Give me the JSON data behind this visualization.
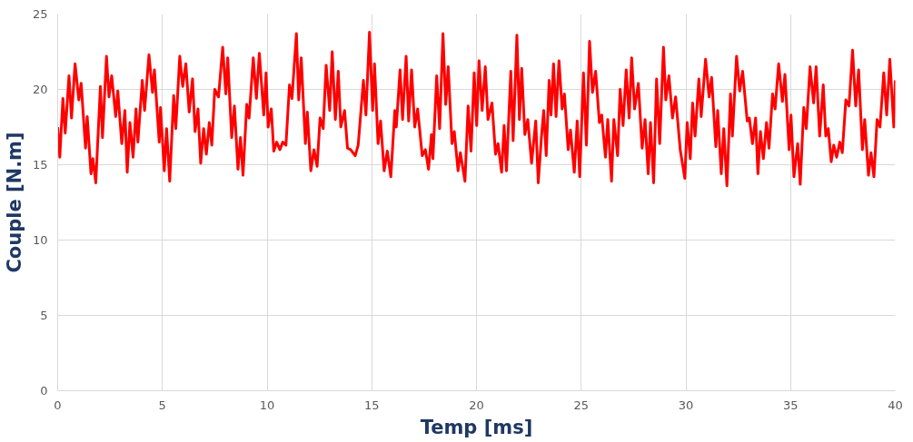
{
  "chart_data": {
    "type": "line",
    "xlabel": "Temp [ms]",
    "ylabel": "Couple [N.m]",
    "xlim": [
      0,
      40
    ],
    "ylim": [
      0,
      25
    ],
    "xticks": [
      0,
      5,
      10,
      15,
      20,
      25,
      30,
      35,
      40
    ],
    "yticks": [
      0,
      5,
      10,
      15,
      20,
      25
    ],
    "grid": true,
    "line_style": "solid",
    "series": [
      {
        "color": "#ff0000",
        "x": [
          0,
          0.1,
          0.25,
          0.36,
          0.54,
          0.66,
          0.83,
          1.01,
          1.12,
          1.33,
          1.41,
          1.59,
          1.68,
          1.82,
          2.04,
          2.14,
          2.33,
          2.45,
          2.58,
          2.77,
          2.87,
          3.06,
          3.21,
          3.32,
          3.45,
          3.6,
          3.74,
          3.83,
          4.04,
          4.15,
          4.36,
          4.53,
          4.62,
          4.85,
          4.91,
          5.09,
          5.2,
          5.35,
          5.54,
          5.64,
          5.83,
          5.97,
          6.12,
          6.28,
          6.44,
          6.56,
          6.7,
          6.83,
          6.97,
          7.1,
          7.24,
          7.36,
          7.5,
          7.68,
          7.88,
          8.03,
          8.12,
          8.31,
          8.44,
          8.61,
          8.73,
          8.85,
          9.03,
          9.14,
          9.34,
          9.49,
          9.63,
          9.84,
          9.95,
          10.05,
          10.2,
          10.32,
          10.46,
          10.61,
          10.75,
          10.9,
          11.07,
          11.19,
          11.4,
          11.51,
          11.63,
          11.83,
          11.92,
          12.09,
          12.24,
          12.39,
          12.53,
          12.68,
          12.82,
          12.99,
          13.11,
          13.26,
          13.4,
          13.52,
          13.7,
          13.84,
          13.99,
          14.21,
          14.35,
          14.6,
          14.72,
          14.89,
          15.04,
          15.13,
          15.3,
          15.42,
          15.59,
          15.74,
          15.91,
          16.1,
          16.17,
          16.35,
          16.47,
          16.64,
          16.76,
          16.9,
          17.05,
          17.19,
          17.41,
          17.56,
          17.71,
          17.85,
          17.92,
          18.1,
          18.24,
          18.4,
          18.53,
          18.65,
          18.83,
          18.94,
          19.12,
          19.23,
          19.45,
          19.6,
          19.74,
          19.89,
          20.01,
          20.12,
          20.27,
          20.42,
          20.55,
          20.74,
          20.91,
          21.03,
          21.2,
          21.32,
          21.43,
          21.64,
          21.75,
          21.93,
          22.05,
          22.16,
          22.31,
          22.45,
          22.63,
          22.83,
          22.95,
          23.1,
          23.21,
          23.33,
          23.47,
          23.56,
          23.68,
          23.8,
          23.94,
          24.09,
          24.2,
          24.38,
          24.49,
          24.67,
          24.81,
          24.93,
          25.11,
          25.25,
          25.4,
          25.54,
          25.69,
          25.87,
          25.98,
          26.16,
          26.27,
          26.45,
          26.56,
          26.74,
          26.86,
          27,
          27.15,
          27.29,
          27.41,
          27.55,
          27.73,
          27.91,
          28.05,
          28.2,
          28.31,
          28.46,
          28.6,
          28.75,
          28.93,
          29.04,
          29.19,
          29.36,
          29.51,
          29.73,
          29.95,
          30.06,
          30.21,
          30.32,
          30.44,
          30.62,
          30.73,
          30.94,
          31.11,
          31.23,
          31.43,
          31.52,
          31.69,
          31.81,
          31.96,
          32.13,
          32.22,
          32.42,
          32.57,
          32.71,
          32.93,
          33.03,
          33.18,
          33.33,
          33.44,
          33.56,
          33.7,
          33.85,
          33.97,
          34.14,
          34.26,
          34.43,
          34.61,
          34.73,
          34.93,
          35.02,
          35.16,
          35.34,
          35.46,
          35.63,
          35.75,
          35.93,
          36.1,
          36.22,
          36.39,
          36.56,
          36.68,
          36.8,
          36.94,
          37.06,
          37.2,
          37.35,
          37.47,
          37.64,
          37.79,
          37.96,
          38.11,
          38.25,
          38.43,
          38.54,
          38.72,
          38.84,
          38.98,
          39.13,
          39.27,
          39.45,
          39.59,
          39.74,
          39.93,
          40
        ],
        "values": [
          17.5,
          15.5,
          19.4,
          17.1,
          20.9,
          18.1,
          21.7,
          19.3,
          20.4,
          16.1,
          18.2,
          14.4,
          15.4,
          13.8,
          20.2,
          16.8,
          22.2,
          19.5,
          20.9,
          18.2,
          19.9,
          16.4,
          18.6,
          14.5,
          17.8,
          15.5,
          18.7,
          16.5,
          20.6,
          18.6,
          22.3,
          19.8,
          21.3,
          16.5,
          18.8,
          14.6,
          17.4,
          13.9,
          19.6,
          17.4,
          22.2,
          20.2,
          21.7,
          18.5,
          20.7,
          17.2,
          18.7,
          15.1,
          17.4,
          15.7,
          17.8,
          16.3,
          20,
          19.5,
          22.8,
          19.7,
          22.1,
          16.8,
          18.9,
          14.7,
          16.8,
          14.3,
          19,
          18.1,
          22.1,
          19.4,
          22.4,
          18.3,
          21.1,
          17.5,
          18.7,
          15.9,
          16.5,
          16,
          16.5,
          16.3,
          20.3,
          19.4,
          23.7,
          19.3,
          22.1,
          16.4,
          18.5,
          14.6,
          16,
          14.9,
          18.1,
          17.4,
          21.6,
          18.6,
          22.5,
          18,
          21.2,
          17.5,
          18.6,
          16.1,
          16,
          15.6,
          16.3,
          20.6,
          18.3,
          23.8,
          18.6,
          21.7,
          16.4,
          17.9,
          14.6,
          15.9,
          14.2,
          18.6,
          17.5,
          21.3,
          18,
          22.2,
          17.9,
          21.3,
          17.5,
          18.7,
          15.6,
          16,
          14.7,
          17,
          15.4,
          20.9,
          17.4,
          23.7,
          19,
          21.5,
          16.4,
          17.2,
          14.6,
          15.8,
          13.9,
          18.9,
          15.9,
          21.1,
          17.6,
          21.9,
          18.6,
          21.5,
          18,
          19.1,
          15.7,
          16.4,
          14.5,
          17.6,
          14.6,
          21.2,
          16.6,
          23.6,
          18,
          21.4,
          17,
          18,
          15.1,
          17.9,
          13.8,
          16.8,
          18.6,
          15.6,
          20.6,
          18.3,
          21.7,
          18.2,
          21.9,
          18.7,
          19.7,
          16,
          17.3,
          14.5,
          17.9,
          14.2,
          21.1,
          16.3,
          23.2,
          19.8,
          21.2,
          17.8,
          18.3,
          15.5,
          18,
          13.9,
          18,
          15.6,
          20,
          17.6,
          21.3,
          18.1,
          22.1,
          18.7,
          20.4,
          16.1,
          18,
          14.4,
          17.8,
          13.8,
          20.7,
          16.4,
          22.8,
          19.3,
          20.9,
          18.1,
          19.5,
          16,
          14.1,
          17.8,
          15.4,
          19.1,
          16.9,
          20.7,
          18.2,
          22,
          19.5,
          20.8,
          16.2,
          18.6,
          14.4,
          17.4,
          13.6,
          19.7,
          16.9,
          22.2,
          19.9,
          21.2,
          17.9,
          18.1,
          16.4,
          18.1,
          14.4,
          17.2,
          15.4,
          17.8,
          16.1,
          19.7,
          18.7,
          21.7,
          19.2,
          21,
          16,
          18.3,
          14.2,
          16.4,
          13.7,
          18.8,
          17.4,
          21.5,
          19.1,
          21.5,
          16.9,
          20.3,
          16.9,
          17.4,
          15.2,
          16.3,
          15.5,
          16.5,
          15.8,
          19.3,
          18.9,
          22.6,
          18.9,
          21.3,
          16,
          18,
          14.3,
          15.8,
          14.2,
          18,
          17.5,
          21.1,
          18.3,
          22,
          17.5,
          20.6
        ]
      }
    ]
  }
}
